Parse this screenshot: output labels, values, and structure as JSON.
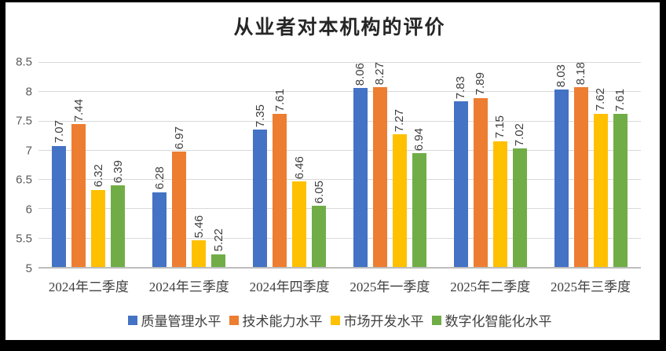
{
  "frame": {
    "border_color": "#000000",
    "chart_background": "#ffffff",
    "gridline_color": "#d9d9d9",
    "axis_line_color": "#bdbdbd",
    "title_color": "#262626",
    "tick_label_color": "#595959",
    "category_label_color": "#404040",
    "data_label_color": "#3f3f3f"
  },
  "chart_data": {
    "type": "bar",
    "title": "从业者对本机构的评价",
    "categories": [
      "2024年二季度",
      "2024年三季度",
      "2024年四季度",
      "2025年一季度",
      "2025年二季度",
      "2025年三季度"
    ],
    "series": [
      {
        "name": "质量管理水平",
        "color": "#4472C4",
        "values": [
          7.07,
          6.28,
          7.35,
          8.06,
          7.83,
          8.03
        ]
      },
      {
        "name": "技术能力水平",
        "color": "#ED7D31",
        "values": [
          7.44,
          6.97,
          7.61,
          8.27,
          7.89,
          8.18
        ]
      },
      {
        "name": "市场开发水平",
        "color": "#FFC000",
        "values": [
          6.32,
          5.46,
          6.46,
          7.27,
          7.15,
          7.62
        ]
      },
      {
        "name": "数字化智能化水平",
        "color": "#70AD47",
        "values": [
          6.39,
          5.22,
          6.05,
          6.94,
          7.02,
          7.61
        ]
      }
    ],
    "xlabel": "",
    "ylabel": "",
    "ylim": [
      5,
      8.5
    ],
    "yticks": [
      8.5,
      8,
      7.5,
      7,
      6.5,
      6,
      5.5,
      5
    ],
    "grid": true,
    "legend_position": "bottom",
    "data_labels": {
      "visible": true,
      "rotation": 90,
      "decimals": 2
    }
  }
}
